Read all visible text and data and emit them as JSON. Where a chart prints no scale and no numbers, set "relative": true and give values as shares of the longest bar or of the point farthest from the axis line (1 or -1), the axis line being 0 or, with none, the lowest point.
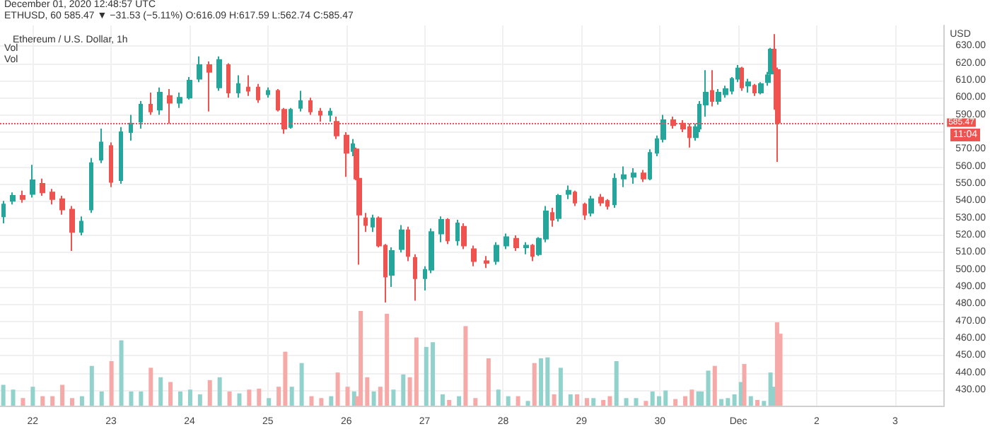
{
  "chart_data": [
    {
      "type": "candlestick",
      "title": "Ethereum / U.S. Dollar, 1h",
      "ylabel": "USD",
      "annotations": [
        "December 01, 2020 12:48:57 UTC",
        "ETHUSD, 60 585.47 ▼ −31.53 (−5.11%) O:616.09 H:617.59 L:562.74 C:585.47",
        "11:04",
        "Vol",
        "Vol"
      ],
      "x": [
        "2020-11-21T15:00",
        "2020-11-21T18:00",
        "2020-11-21T21:00",
        "2020-11-22T00:00",
        "2020-11-22T03:00",
        "2020-11-22T06:00",
        "2020-11-22T09:00",
        "2020-11-22T12:00",
        "2020-11-22T15:00",
        "2020-11-22T18:00",
        "2020-11-22T21:00",
        "2020-11-23T00:00",
        "2020-11-23T03:00",
        "2020-11-23T06:00",
        "2020-11-23T09:00",
        "2020-11-23T12:00",
        "2020-11-23T15:00",
        "2020-11-23T18:00",
        "2020-11-23T21:00",
        "2020-11-24T00:00",
        "2020-11-24T03:00",
        "2020-11-24T06:00",
        "2020-11-24T09:00",
        "2020-11-24T12:00",
        "2020-11-24T15:00",
        "2020-11-24T18:00",
        "2020-11-24T21:00",
        "2020-11-25T00:00",
        "2020-11-25T03:00",
        "2020-11-25T05:00",
        "2020-11-25T07:00",
        "2020-11-25T10:00",
        "2020-11-25T13:00",
        "2020-11-25T16:00",
        "2020-11-25T19:00",
        "2020-11-25T21:00",
        "2020-11-26T00:00",
        "2020-11-26T02:00",
        "2020-11-26T03:00",
        "2020-11-26T04:00",
        "2020-11-26T06:00",
        "2020-11-26T08:00",
        "2020-11-26T10:00",
        "2020-11-26T12:00",
        "2020-11-26T14:00",
        "2020-11-26T17:00",
        "2020-11-26T19:00",
        "2020-11-26T21:00",
        "2020-11-27T00:00",
        "2020-11-27T02:00",
        "2020-11-27T05:00",
        "2020-11-27T07:00",
        "2020-11-27T10:00",
        "2020-11-27T12:00",
        "2020-11-27T15:00",
        "2020-11-27T19:00",
        "2020-11-27T22:00",
        "2020-11-28T01:00",
        "2020-11-28T04:00",
        "2020-11-28T07:00",
        "2020-11-28T09:00",
        "2020-11-28T11:00",
        "2020-11-28T13:00",
        "2020-11-28T15:00",
        "2020-11-28T17:00",
        "2020-11-28T20:00",
        "2020-11-28T22:00",
        "2020-11-29T01:00",
        "2020-11-29T03:00",
        "2020-11-29T06:00",
        "2020-11-29T08:00",
        "2020-11-29T10:00",
        "2020-11-29T13:00",
        "2020-11-29T16:00",
        "2020-11-29T19:00",
        "2020-11-29T21:00",
        "2020-11-29T23:00",
        "2020-11-30T01:00",
        "2020-11-30T04:00",
        "2020-11-30T07:00",
        "2020-11-30T09:00",
        "2020-11-30T11:00",
        "2020-11-30T12:00",
        "2020-11-30T14:00",
        "2020-11-30T16:00",
        "2020-11-30T18:00",
        "2020-11-30T20:00",
        "2020-11-30T22:00",
        "2020-12-01T00:00",
        "2020-12-01T01:00",
        "2020-12-01T03:00",
        "2020-12-01T05:00",
        "2020-12-01T07:00",
        "2020-12-01T09:00",
        "2020-12-01T10:00",
        "2020-12-01T11:00",
        "2020-12-01T12:00"
      ],
      "ohlc": [
        [
          531,
          540,
          527,
          538
        ],
        [
          540,
          545,
          538,
          543
        ],
        [
          543,
          546,
          539,
          541
        ],
        [
          544,
          561,
          542,
          552
        ],
        [
          550,
          553,
          543,
          545
        ],
        [
          545,
          547,
          538,
          541
        ],
        [
          541,
          543,
          532,
          535
        ],
        [
          535,
          537,
          511,
          522
        ],
        [
          522,
          531,
          520,
          528
        ],
        [
          535,
          565,
          533,
          562
        ],
        [
          564,
          582,
          562,
          574
        ],
        [
          572,
          574,
          548,
          551
        ],
        [
          552,
          583,
          550,
          580
        ],
        [
          580,
          590,
          575,
          585
        ],
        [
          586,
          598,
          582,
          596
        ],
        [
          596,
          603,
          590,
          592
        ],
        [
          593,
          606,
          590,
          603
        ],
        [
          601,
          605,
          585,
          597
        ],
        [
          597,
          603,
          594,
          600
        ],
        [
          600,
          612,
          599,
          610
        ],
        [
          611,
          624,
          609,
          619
        ],
        [
          619,
          621,
          592,
          615
        ],
        [
          606,
          624,
          604,
          622
        ],
        [
          619,
          620,
          600,
          603
        ],
        [
          603,
          613,
          600,
          608
        ],
        [
          606,
          613,
          601,
          604
        ],
        [
          606,
          608,
          597,
          599
        ],
        [
          602,
          606,
          600,
          604
        ],
        [
          604,
          605,
          592,
          593
        ],
        [
          593,
          594,
          579,
          582
        ],
        [
          583,
          594,
          582,
          593
        ],
        [
          594,
          604,
          592,
          598
        ],
        [
          598,
          600,
          590,
          592
        ],
        [
          592,
          594,
          586,
          590
        ],
        [
          590,
          594,
          586,
          592
        ],
        [
          586,
          589,
          576,
          578
        ],
        [
          578,
          580,
          554,
          568
        ],
        [
          569,
          576,
          566,
          573
        ],
        [
          570,
          571,
          552,
          553
        ],
        [
          553,
          554,
          503,
          532
        ],
        [
          530,
          533,
          522,
          526
        ],
        [
          525,
          532,
          522,
          530
        ],
        [
          530,
          531,
          513,
          514
        ],
        [
          514,
          515,
          481,
          496
        ],
        [
          497,
          513,
          490,
          511
        ],
        [
          512,
          526,
          510,
          523
        ],
        [
          523,
          525,
          505,
          508
        ],
        [
          507,
          509,
          482,
          495
        ],
        [
          495,
          502,
          488,
          500
        ],
        [
          500,
          524,
          498,
          522
        ],
        [
          521,
          531,
          516,
          529
        ],
        [
          529,
          530,
          515,
          517
        ],
        [
          517,
          529,
          514,
          527
        ],
        [
          525,
          527,
          512,
          514
        ],
        [
          512,
          514,
          502,
          505
        ],
        [
          505,
          508,
          501,
          504
        ],
        [
          505,
          516,
          503,
          514
        ],
        [
          514,
          521,
          512,
          519
        ],
        [
          518,
          520,
          511,
          513
        ],
        [
          513,
          516,
          509,
          514
        ],
        [
          514,
          515,
          505,
          508
        ],
        [
          509,
          519,
          508,
          518
        ],
        [
          518,
          537,
          516,
          534
        ],
        [
          533,
          536,
          525,
          529
        ],
        [
          530,
          544,
          528,
          543
        ],
        [
          544,
          549,
          541,
          546
        ],
        [
          545,
          546,
          537,
          539
        ],
        [
          538,
          539,
          529,
          532
        ],
        [
          533,
          543,
          531,
          541
        ],
        [
          542,
          544,
          537,
          539
        ],
        [
          540,
          541,
          535,
          537
        ],
        [
          538,
          556,
          536,
          553
        ],
        [
          553,
          560,
          548,
          555
        ],
        [
          554,
          559,
          550,
          556
        ],
        [
          556,
          558,
          551,
          553
        ],
        [
          553,
          570,
          552,
          568
        ],
        [
          568,
          578,
          566,
          576
        ],
        [
          576,
          590,
          574,
          587
        ],
        [
          587,
          589,
          582,
          584
        ],
        [
          585,
          587,
          580,
          582
        ],
        [
          583,
          585,
          571,
          577
        ],
        [
          577,
          585,
          575,
          583
        ],
        [
          582,
          598,
          580,
          596
        ],
        [
          596,
          616,
          589,
          603
        ],
        [
          604,
          616,
          595,
          598
        ],
        [
          598,
          605,
          596,
          603
        ],
        [
          602,
          607,
          600,
          605
        ],
        [
          604,
          612,
          602,
          611
        ],
        [
          611,
          619,
          609,
          617
        ],
        [
          617,
          618,
          604,
          606
        ],
        [
          607,
          611,
          603,
          609
        ],
        [
          607,
          608,
          601,
          603
        ],
        [
          603,
          609,
          602,
          608
        ],
        [
          609,
          615,
          607,
          613
        ],
        [
          614,
          629,
          612,
          628
        ],
        [
          628,
          637,
          593,
          616
        ],
        [
          616.09,
          617.59,
          562.74,
          585.47
        ]
      ],
      "colors": [
        "#26a69a",
        "#26a69a",
        "#ef5350",
        "#26a69a",
        "#ef5350",
        "#ef5350",
        "#ef5350",
        "#ef5350",
        "#26a69a",
        "#26a69a",
        "#26a69a",
        "#ef5350",
        "#26a69a",
        "#26a69a",
        "#26a69a",
        "#ef5350",
        "#26a69a",
        "#ef5350",
        "#26a69a",
        "#26a69a",
        "#26a69a",
        "#ef5350",
        "#26a69a",
        "#ef5350",
        "#26a69a",
        "#ef5350",
        "#ef5350",
        "#26a69a",
        "#ef5350",
        "#ef5350",
        "#26a69a",
        "#26a69a",
        "#ef5350",
        "#ef5350",
        "#26a69a",
        "#ef5350",
        "#ef5350",
        "#26a69a",
        "#ef5350",
        "#ef5350",
        "#ef5350",
        "#26a69a",
        "#ef5350",
        "#ef5350",
        "#26a69a",
        "#26a69a",
        "#ef5350",
        "#ef5350",
        "#26a69a",
        "#26a69a",
        "#26a69a",
        "#ef5350",
        "#26a69a",
        "#ef5350",
        "#ef5350",
        "#ef5350",
        "#26a69a",
        "#26a69a",
        "#ef5350",
        "#26a69a",
        "#ef5350",
        "#26a69a",
        "#26a69a",
        "#ef5350",
        "#26a69a",
        "#26a69a",
        "#ef5350",
        "#ef5350",
        "#26a69a",
        "#ef5350",
        "#ef5350",
        "#26a69a",
        "#26a69a",
        "#26a69a",
        "#ef5350",
        "#26a69a",
        "#26a69a",
        "#26a69a",
        "#ef5350",
        "#ef5350",
        "#ef5350",
        "#26a69a",
        "#26a69a",
        "#26a69a",
        "#ef5350",
        "#26a69a",
        "#26a69a",
        "#26a69a",
        "#26a69a",
        "#ef5350",
        "#26a69a",
        "#ef5350",
        "#26a69a",
        "#26a69a",
        "#26a69a",
        "#ef5350",
        "#ef5350"
      ],
      "xlim": [
        "2020-11-21T14:00",
        "2020-12-03T15:00"
      ],
      "xticks": [
        {
          "value": "2020-11-22",
          "label": "22"
        },
        {
          "value": "2020-11-23",
          "label": "23"
        },
        {
          "value": "2020-11-24",
          "label": "24"
        },
        {
          "value": "2020-11-25",
          "label": "25"
        },
        {
          "value": "2020-11-26",
          "label": "26"
        },
        {
          "value": "2020-11-27",
          "label": "27"
        },
        {
          "value": "2020-11-28",
          "label": "28"
        },
        {
          "value": "2020-11-29",
          "label": "29"
        },
        {
          "value": "2020-11-30",
          "label": "30"
        },
        {
          "value": "2020-12-01",
          "label": "Dec"
        },
        {
          "value": "2020-12-02",
          "label": "2"
        },
        {
          "value": "2020-12-03",
          "label": "3"
        }
      ],
      "ylim": [
        421,
        642
      ],
      "yticks": [
        {
          "value": 430,
          "label": "430.00"
        },
        {
          "value": 440,
          "label": "440.00"
        },
        {
          "value": 450,
          "label": "450.00"
        },
        {
          "value": 460,
          "label": "460.00"
        },
        {
          "value": 470,
          "label": "470.00"
        },
        {
          "value": 480,
          "label": "480.00"
        },
        {
          "value": 490,
          "label": "490.00"
        },
        {
          "value": 500,
          "label": "500.00"
        },
        {
          "value": 510,
          "label": "510.00"
        },
        {
          "value": 520,
          "label": "520.00"
        },
        {
          "value": 530,
          "label": "530.00"
        },
        {
          "value": 540,
          "label": "540.00"
        },
        {
          "value": 550,
          "label": "550.00"
        },
        {
          "value": 560,
          "label": "560.00"
        },
        {
          "value": 570,
          "label": "570.00"
        },
        {
          "value": 580,
          "label": null
        },
        {
          "value": 590,
          "label": "590.00"
        },
        {
          "value": 600,
          "label": "600.00"
        },
        {
          "value": 610,
          "label": "610.00"
        },
        {
          "value": 620,
          "label": "620.00"
        },
        {
          "value": 630,
          "label": "630.00"
        }
      ],
      "grid": true,
      "ref_lines": [
        {
          "axis": "y",
          "value": 585.47,
          "label": "585.47",
          "color": "#ef5350",
          "line_style": "dotted"
        }
      ]
    },
    {
      "type": "bar",
      "relative": true,
      "tick_labels": false,
      "xlim": [
        "2020-11-21T14:00",
        "2020-12-03T15:00"
      ],
      "x": [
        "2020-11-21T15:00",
        "2020-11-21T18:00",
        "2020-11-21T21:00",
        "2020-11-22T00:00",
        "2020-11-22T03:00",
        "2020-11-22T06:00",
        "2020-11-22T09:00",
        "2020-11-22T12:00",
        "2020-11-22T15:00",
        "2020-11-22T18:00",
        "2020-11-22T21:00",
        "2020-11-23T00:00",
        "2020-11-23T03:00",
        "2020-11-23T06:00",
        "2020-11-23T09:00",
        "2020-11-23T12:00",
        "2020-11-23T15:00",
        "2020-11-23T18:00",
        "2020-11-23T21:00",
        "2020-11-24T00:00",
        "2020-11-24T03:00",
        "2020-11-24T06:00",
        "2020-11-24T09:00",
        "2020-11-24T12:00",
        "2020-11-24T15:00",
        "2020-11-24T18:00",
        "2020-11-24T21:00",
        "2020-11-25T00:00",
        "2020-11-25T03:00",
        "2020-11-25T05:00",
        "2020-11-25T07:00",
        "2020-11-25T10:00",
        "2020-11-25T13:00",
        "2020-11-25T16:00",
        "2020-11-25T19:00",
        "2020-11-25T21:00",
        "2020-11-26T00:00",
        "2020-11-26T02:00",
        "2020-11-26T03:00",
        "2020-11-26T04:00",
        "2020-11-26T06:00",
        "2020-11-26T08:00",
        "2020-11-26T10:00",
        "2020-11-26T12:00",
        "2020-11-26T14:00",
        "2020-11-26T17:00",
        "2020-11-26T19:00",
        "2020-11-26T21:00",
        "2020-11-27T00:00",
        "2020-11-27T02:00",
        "2020-11-27T05:00",
        "2020-11-27T07:00",
        "2020-11-27T10:00",
        "2020-11-27T12:00",
        "2020-11-27T15:00",
        "2020-11-27T19:00",
        "2020-11-27T22:00",
        "2020-11-28T01:00",
        "2020-11-28T04:00",
        "2020-11-28T07:00",
        "2020-11-28T09:00",
        "2020-11-28T11:00",
        "2020-11-28T13:00",
        "2020-11-28T15:00",
        "2020-11-28T17:00",
        "2020-11-28T20:00",
        "2020-11-28T22:00",
        "2020-11-29T01:00",
        "2020-11-29T03:00",
        "2020-11-29T06:00",
        "2020-11-29T08:00",
        "2020-11-29T10:00",
        "2020-11-29T13:00",
        "2020-11-29T16:00",
        "2020-11-29T19:00",
        "2020-11-29T21:00",
        "2020-11-29T23:00",
        "2020-11-30T01:00",
        "2020-11-30T04:00",
        "2020-11-30T07:00",
        "2020-11-30T09:00",
        "2020-11-30T11:00",
        "2020-11-30T12:00",
        "2020-11-30T14:00",
        "2020-11-30T16:00",
        "2020-11-30T18:00",
        "2020-11-30T20:00",
        "2020-11-30T22:00",
        "2020-12-01T00:00",
        "2020-12-01T01:00",
        "2020-12-01T03:00",
        "2020-12-01T05:00",
        "2020-12-01T07:00",
        "2020-12-01T09:00",
        "2020-12-01T10:00",
        "2020-12-01T11:00",
        "2020-12-01T12:00"
      ],
      "values": [
        0.22,
        0.17,
        0.08,
        0.2,
        0.1,
        0.1,
        0.22,
        0.08,
        0.1,
        0.42,
        0.15,
        0.47,
        0.69,
        0.15,
        0.15,
        0.4,
        0.3,
        0.25,
        0.15,
        0.17,
        0.12,
        0.27,
        0.3,
        0.15,
        0.13,
        0.17,
        0.18,
        0.08,
        0.2,
        0.57,
        0.2,
        0.45,
        0.1,
        0.08,
        0.1,
        0.35,
        0.2,
        0.15,
        0.1,
        1,
        0.3,
        0.15,
        0.2,
        0.97,
        0.17,
        0.33,
        0.3,
        0.72,
        0.62,
        0.67,
        0.12,
        0.06,
        0.1,
        0.84,
        0.08,
        0.5,
        0.17,
        0.1,
        0.1,
        0.05,
        0.45,
        0.5,
        0.51,
        0.12,
        0.4,
        0.12,
        0.12,
        0.08,
        0.08,
        0.06,
        0.1,
        0.47,
        0.08,
        0.08,
        0.05,
        0.15,
        0.1,
        0.16,
        0.07,
        0.1,
        0.17,
        0.15,
        0.15,
        0.37,
        0.42,
        0.07,
        0.08,
        0.12,
        0.25,
        0.44,
        0.1,
        0.06,
        0.05,
        0.35,
        0.2,
        0.88,
        0.76
      ],
      "colors": [
        "#92d2cc",
        "#92d2cc",
        "#f7a9a7",
        "#92d2cc",
        "#f7a9a7",
        "#f7a9a7",
        "#f7a9a7",
        "#f7a9a7",
        "#92d2cc",
        "#92d2cc",
        "#92d2cc",
        "#f7a9a7",
        "#92d2cc",
        "#92d2cc",
        "#92d2cc",
        "#f7a9a7",
        "#92d2cc",
        "#f7a9a7",
        "#92d2cc",
        "#92d2cc",
        "#92d2cc",
        "#f7a9a7",
        "#92d2cc",
        "#f7a9a7",
        "#92d2cc",
        "#f7a9a7",
        "#f7a9a7",
        "#92d2cc",
        "#f7a9a7",
        "#f7a9a7",
        "#92d2cc",
        "#92d2cc",
        "#f7a9a7",
        "#f7a9a7",
        "#92d2cc",
        "#f7a9a7",
        "#f7a9a7",
        "#92d2cc",
        "#f7a9a7",
        "#f7a9a7",
        "#f7a9a7",
        "#92d2cc",
        "#f7a9a7",
        "#f7a9a7",
        "#92d2cc",
        "#92d2cc",
        "#f7a9a7",
        "#f7a9a7",
        "#92d2cc",
        "#92d2cc",
        "#92d2cc",
        "#f7a9a7",
        "#92d2cc",
        "#f7a9a7",
        "#f7a9a7",
        "#f7a9a7",
        "#92d2cc",
        "#92d2cc",
        "#f7a9a7",
        "#92d2cc",
        "#f7a9a7",
        "#92d2cc",
        "#92d2cc",
        "#f7a9a7",
        "#92d2cc",
        "#92d2cc",
        "#f7a9a7",
        "#f7a9a7",
        "#92d2cc",
        "#f7a9a7",
        "#f7a9a7",
        "#92d2cc",
        "#92d2cc",
        "#92d2cc",
        "#f7a9a7",
        "#92d2cc",
        "#92d2cc",
        "#92d2cc",
        "#f7a9a7",
        "#f7a9a7",
        "#f7a9a7",
        "#92d2cc",
        "#92d2cc",
        "#92d2cc",
        "#f7a9a7",
        "#92d2cc",
        "#92d2cc",
        "#92d2cc",
        "#92d2cc",
        "#f7a9a7",
        "#92d2cc",
        "#f7a9a7",
        "#92d2cc",
        "#92d2cc",
        "#92d2cc",
        "#f7a9a7",
        "#f7a9a7"
      ]
    }
  ]
}
